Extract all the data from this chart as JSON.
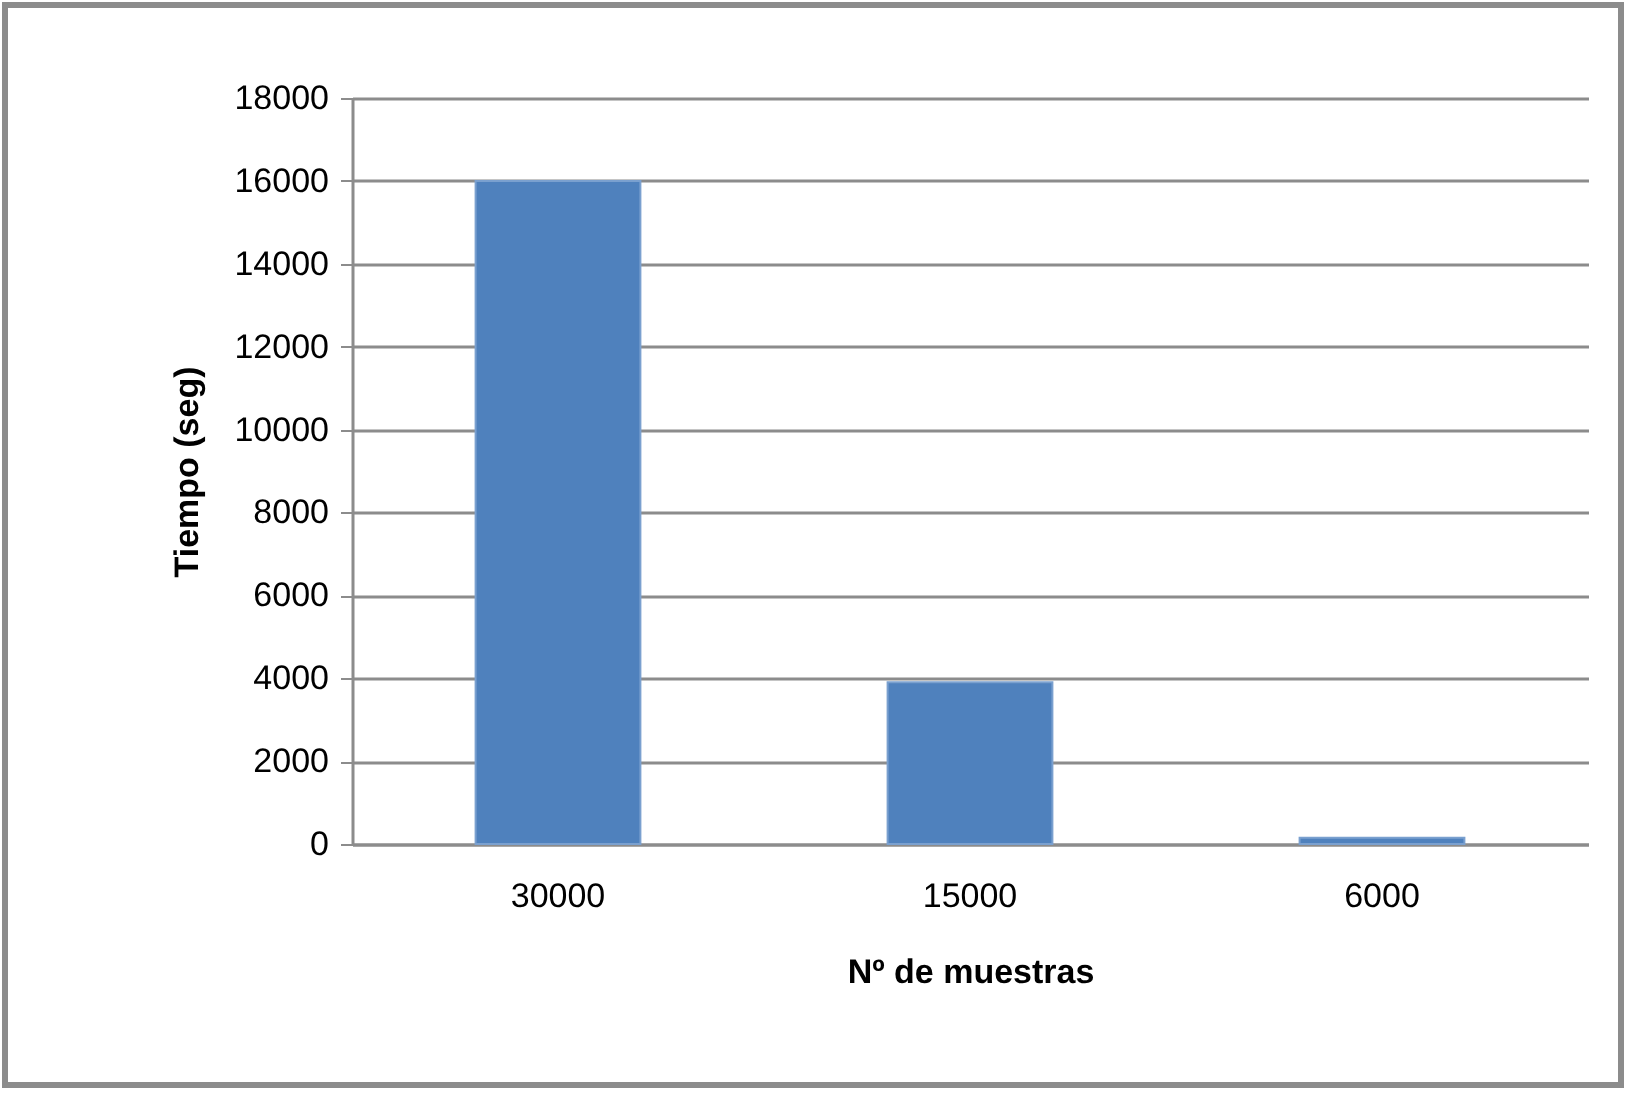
{
  "chart_data": {
    "type": "bar",
    "xlabel": "Nº de muestras",
    "ylabel": "Tiempo (seg)",
    "categories": [
      "30000",
      "15000",
      "6000"
    ],
    "values": [
      16000,
      3900,
      150
    ],
    "color": "#4f81bd",
    "ylim": [
      0,
      18000
    ],
    "yticks": [
      0,
      2000,
      4000,
      6000,
      8000,
      10000,
      12000,
      14000,
      16000,
      18000
    ],
    "grid": "y"
  }
}
